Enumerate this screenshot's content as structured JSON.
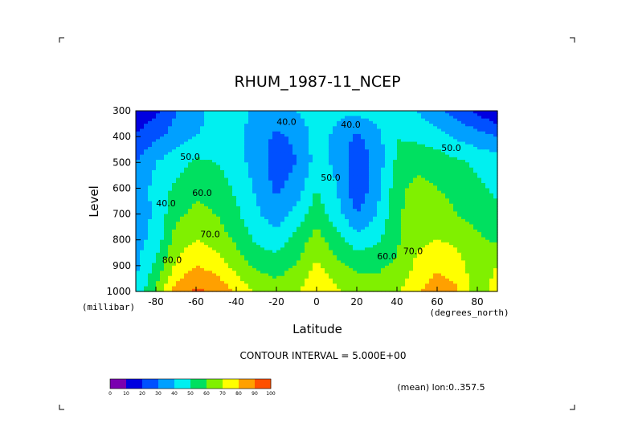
{
  "chart_data": {
    "type": "heatmap",
    "title": "RHUM_1987-11_NCEP",
    "xlabel": "Latitude",
    "ylabel": "Level",
    "x_unit": "(degrees_north)",
    "y_unit": "(millibar)",
    "xlim": [
      -90,
      90
    ],
    "ylim": [
      1000,
      300
    ],
    "x_ticks": [
      "-80",
      "-60",
      "-40",
      "-20",
      "0",
      "20",
      "40",
      "60",
      "80"
    ],
    "y_ticks": [
      "300",
      "400",
      "500",
      "600",
      "700",
      "800",
      "900",
      "1000"
    ],
    "contour_interval_label": "CONTOUR INTERVAL = 5.000E+00",
    "mean_label": "(mean) lon:0..357.5",
    "contour_labels": [
      {
        "text": "40.0",
        "lat": -75,
        "lev": 670
      },
      {
        "text": "50.0",
        "lat": -63,
        "lev": 490
      },
      {
        "text": "60.0",
        "lat": -57,
        "lev": 630
      },
      {
        "text": "70.0",
        "lat": -53,
        "lev": 790
      },
      {
        "text": "80.0",
        "lat": -72,
        "lev": 890
      },
      {
        "text": "40.0",
        "lat": -15,
        "lev": 355
      },
      {
        "text": "40.0",
        "lat": 17,
        "lev": 365
      },
      {
        "text": "50.0",
        "lat": 7,
        "lev": 570
      },
      {
        "text": "50.0",
        "lat": 67,
        "lev": 455
      },
      {
        "text": "60.0",
        "lat": 35,
        "lev": 875
      },
      {
        "text": "70.0",
        "lat": 48,
        "lev": 855
      }
    ],
    "legend": {
      "ticks": [
        "0",
        "10",
        "20",
        "30",
        "40",
        "50",
        "60",
        "70",
        "80",
        "90",
        "100"
      ],
      "colors": [
        "#7a00b0",
        "#0000e0",
        "#0050ff",
        "#00a0ff",
        "#00f0f0",
        "#00e060",
        "#80f000",
        "#ffff00",
        "#ffa000",
        "#ff5000",
        "#ff0000"
      ]
    },
    "lat_grid": [
      -90,
      -80,
      -70,
      -60,
      -50,
      -40,
      -30,
      -20,
      -10,
      0,
      10,
      20,
      30,
      40,
      50,
      60,
      70,
      80,
      90
    ],
    "level_grid": [
      300,
      400,
      500,
      600,
      700,
      800,
      900,
      1000
    ],
    "values": [
      [
        10,
        18,
        30,
        36,
        44,
        44,
        38,
        36,
        40,
        46,
        42,
        42,
        46,
        44,
        40,
        32,
        26,
        18,
        10
      ],
      [
        22,
        28,
        34,
        40,
        44,
        42,
        36,
        28,
        32,
        44,
        38,
        28,
        36,
        50,
        48,
        44,
        38,
        34,
        30
      ],
      [
        30,
        40,
        46,
        52,
        50,
        44,
        36,
        24,
        30,
        44,
        38,
        22,
        34,
        52,
        56,
        56,
        52,
        48,
        46
      ],
      [
        32,
        44,
        52,
        58,
        56,
        48,
        38,
        28,
        34,
        50,
        40,
        22,
        36,
        56,
        64,
        60,
        56,
        52,
        48
      ],
      [
        34,
        42,
        58,
        62,
        60,
        52,
        42,
        34,
        44,
        56,
        44,
        30,
        40,
        58,
        66,
        66,
        60,
        56,
        52
      ],
      [
        36,
        44,
        64,
        70,
        66,
        58,
        48,
        44,
        54,
        64,
        54,
        44,
        48,
        58,
        68,
        70,
        68,
        62,
        58
      ],
      [
        38,
        52,
        72,
        80,
        76,
        66,
        58,
        56,
        60,
        72,
        62,
        58,
        58,
        62,
        72,
        78,
        74,
        64,
        70
      ],
      [
        40,
        62,
        84,
        92,
        88,
        78,
        68,
        64,
        68,
        80,
        72,
        66,
        64,
        68,
        78,
        86,
        82,
        62,
        76
      ]
    ]
  }
}
